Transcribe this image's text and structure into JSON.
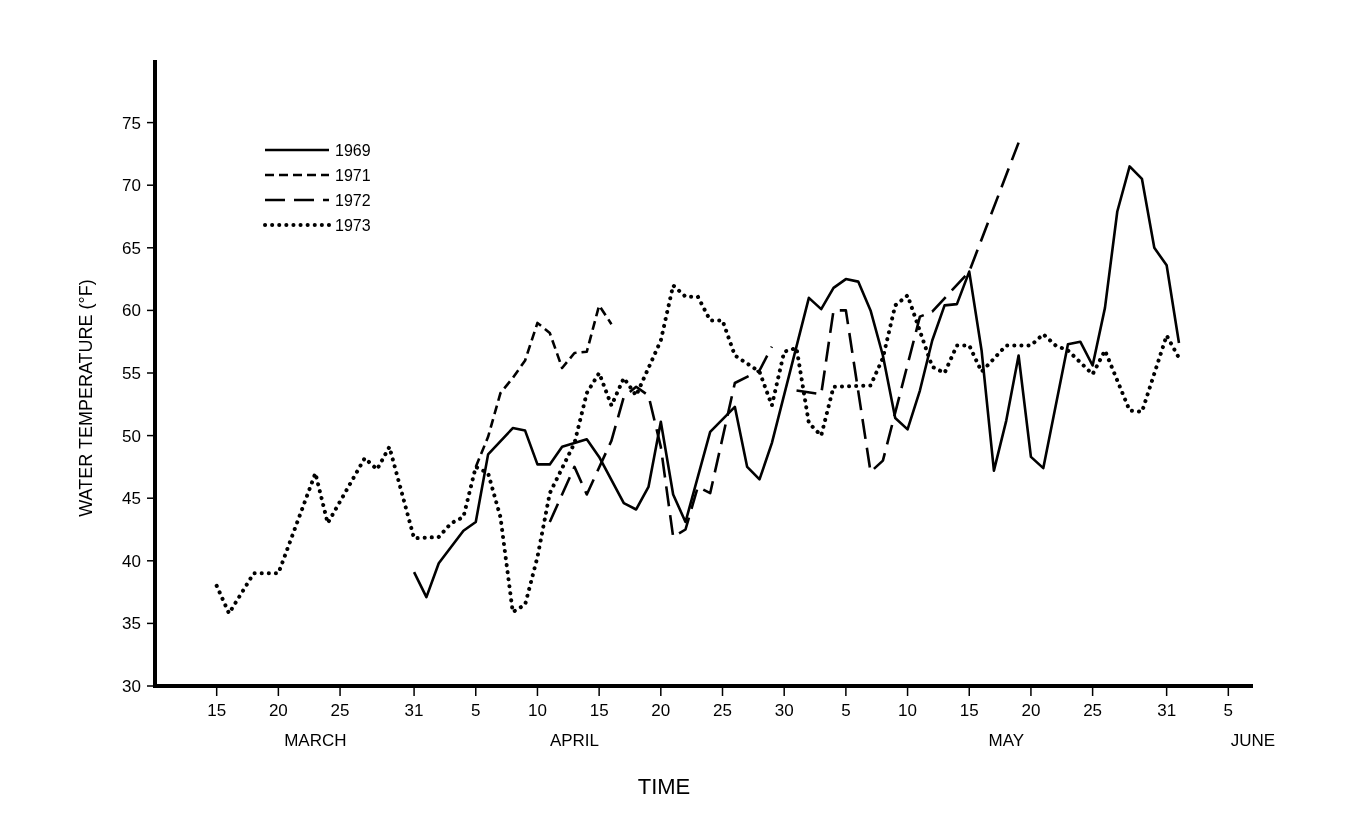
{
  "chart_data": {
    "type": "line",
    "xlabel": "TIME",
    "ylabel": "WATER TEMPERATURE (°F)",
    "xlim": [
      "--03-10",
      "--06-07"
    ],
    "xticks": [
      {
        "value": "--03-15",
        "label": "15"
      },
      {
        "value": "--03-20",
        "label": "20"
      },
      {
        "value": "--03-25",
        "label": "25"
      },
      {
        "value": "--03-31",
        "label": "31"
      },
      {
        "value": "--04-05",
        "label": "5"
      },
      {
        "value": "--04-10",
        "label": "10"
      },
      {
        "value": "--04-15",
        "label": "15"
      },
      {
        "value": "--04-20",
        "label": "20"
      },
      {
        "value": "--04-25",
        "label": "25"
      },
      {
        "value": "--04-30",
        "label": "30"
      },
      {
        "value": "--05-05",
        "label": "5"
      },
      {
        "value": "--05-10",
        "label": "10"
      },
      {
        "value": "--05-15",
        "label": "15"
      },
      {
        "value": "--05-20",
        "label": "20"
      },
      {
        "value": "--05-25",
        "label": "25"
      },
      {
        "value": "--05-31",
        "label": "31"
      },
      {
        "value": "--06-05",
        "label": "5"
      }
    ],
    "x2lim": [
      "--03-10",
      "--06-07"
    ],
    "x2ticks": [
      {
        "value": "--03-23",
        "label": "MARCH"
      },
      {
        "value": "--04-13",
        "label": "APRIL"
      },
      {
        "value": "--05-18",
        "label": "MAY"
      },
      {
        "value": "--06-07",
        "label": "JUNE"
      }
    ],
    "ylim": [
      30,
      80
    ],
    "yticks": [
      30,
      35,
      40,
      45,
      50,
      55,
      60,
      65,
      70,
      75
    ],
    "grid": false,
    "legend": "top left",
    "marker": "none",
    "series": [
      {
        "name": "1969",
        "color": "#000000",
        "line_style": "solid",
        "x": [
          "--03-31",
          "--04-01",
          "--04-02",
          "--04-04",
          "--04-05",
          "--04-06",
          "--04-08",
          "--04-09",
          "--04-10",
          "--04-11",
          "--04-12",
          "--04-14",
          "--04-15",
          "--04-17",
          "--04-18",
          "--04-19",
          "--04-20",
          "--04-21",
          "--04-22",
          "--04-24",
          "--04-26",
          "--04-27",
          "--04-28",
          "--04-29",
          "--05-02",
          "--05-03",
          "--05-04",
          "--05-05",
          "--05-06",
          "--05-07",
          "--05-08",
          "--05-09",
          "--05-10",
          "--05-11",
          "--05-12",
          "--05-13",
          "--05-14",
          "--05-15",
          "--05-16",
          "--05-17",
          "--05-18",
          "--05-19",
          "--05-20",
          "--05-21",
          "--05-23",
          "--05-24",
          "--05-25",
          "--05-26",
          "--05-27",
          "--05-28",
          "--05-29",
          "--05-30",
          "--05-31",
          "--06-01"
        ],
        "values": [
          39.1,
          37.1,
          39.8,
          42.4,
          43.1,
          48.5,
          50.6,
          50.4,
          47.7,
          47.7,
          49.1,
          49.7,
          48.3,
          44.6,
          44.1,
          45.9,
          51.1,
          45.3,
          43.1,
          50.3,
          52.3,
          47.5,
          46.5,
          49.4,
          61.0,
          60.1,
          61.8,
          62.5,
          62.3,
          60.0,
          56.4,
          51.4,
          50.5,
          53.6,
          57.6,
          60.4,
          60.5,
          63.1,
          56.8,
          47.2,
          51.2,
          56.4,
          48.3,
          47.4,
          57.3,
          57.5,
          55.6,
          60.2,
          67.9,
          71.5,
          70.5,
          65.0,
          63.6,
          57.4
        ]
      },
      {
        "name": "1971",
        "color": "#000000",
        "line_style": "dashed",
        "x": [
          "--04-05",
          "--04-06",
          "--04-07",
          "--04-08",
          "--04-09",
          "--04-10",
          "--04-11",
          "--04-12",
          "--04-13",
          "--04-14",
          "--04-15",
          "--04-16"
        ],
        "values": [
          47.5,
          49.9,
          53.4,
          54.6,
          56.0,
          59.0,
          58.2,
          55.4,
          56.6,
          56.7,
          60.4,
          58.9
        ]
      },
      {
        "name": "1972",
        "color": "#000000",
        "line_style": "dashed",
        "x": [
          "--04-11",
          "--04-13",
          "--04-14",
          "--04-16",
          "--04-17",
          "--04-18",
          "--04-19",
          "--04-20",
          "--04-21",
          "--04-22",
          "--04-23",
          "--04-24",
          "--04-26",
          "--04-28",
          "--04-29",
          "--04-30",
          "--05-01",
          "--05-03",
          "--05-04",
          "--05-05",
          "--05-07",
          "--05-08",
          "--05-11",
          "--05-12",
          "--05-15",
          "--05-19"
        ],
        "values": [
          43.1,
          47.5,
          45.3,
          49.6,
          53.1,
          53.9,
          53.2,
          49.1,
          41.9,
          42.5,
          45.9,
          45.4,
          54.2,
          55.2,
          57.1,
          null,
          53.6,
          53.3,
          60.0,
          60.0,
          47.1,
          48.0,
          59.5,
          59.9,
          63.1,
          73.4
        ]
      },
      {
        "name": "1973",
        "color": "#000000",
        "line_style": "dotted",
        "x": [
          "--03-15",
          "--03-16",
          "--03-18",
          "--03-20",
          "--03-23",
          "--03-24",
          "--03-27",
          "--03-28",
          "--03-29",
          "--03-31",
          "--04-02",
          "--04-03",
          "--04-04",
          "--04-05",
          "--04-06",
          "--04-07",
          "--04-08",
          "--04-09",
          "--04-10",
          "--04-11",
          "--04-13",
          "--04-14",
          "--04-15",
          "--04-16",
          "--04-17",
          "--04-18",
          "--04-20",
          "--04-21",
          "--04-22",
          "--04-23",
          "--04-24",
          "--04-25",
          "--04-26",
          "--04-28",
          "--04-29",
          "--04-30",
          "--05-01",
          "--05-02",
          "--05-03",
          "--05-04",
          "--05-07",
          "--05-08",
          "--05-09",
          "--05-10",
          "--05-12",
          "--05-13",
          "--05-14",
          "--05-15",
          "--05-16",
          "--05-18",
          "--05-20",
          "--05-21",
          "--05-22",
          "--05-23",
          "--05-25",
          "--05-26",
          "--05-28",
          "--05-29",
          "--05-31",
          "--06-01"
        ],
        "values": [
          38.0,
          35.8,
          39.0,
          39.0,
          47.0,
          43.0,
          48.2,
          47.3,
          49.1,
          41.8,
          41.9,
          43.0,
          43.5,
          47.5,
          47.0,
          43.5,
          35.9,
          36.5,
          40.3,
          45.4,
          49.4,
          53.4,
          55.0,
          52.4,
          54.6,
          53.2,
          57.6,
          62.0,
          61.1,
          61.1,
          59.2,
          59.2,
          56.4,
          55.1,
          52.4,
          56.7,
          57.0,
          51.0,
          50.0,
          53.9,
          54.0,
          56.2,
          60.4,
          61.2,
          55.5,
          55.0,
          57.2,
          57.2,
          55.1,
          57.2,
          57.2,
          58.1,
          57.2,
          56.8,
          54.9,
          56.8,
          52.0,
          51.9,
          58.0,
          56.2
        ]
      }
    ]
  }
}
